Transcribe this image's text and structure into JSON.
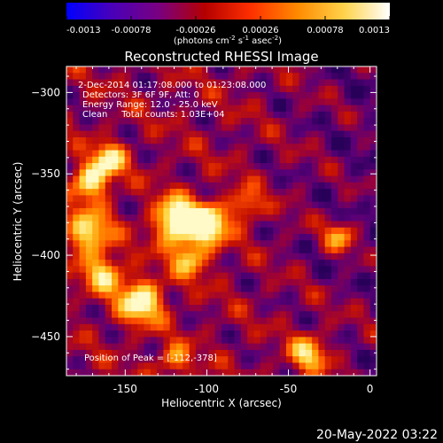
{
  "colorbar": {
    "tick_labels": [
      "-0.0013",
      "-0.00078",
      "-0.00026",
      "0.00026",
      "0.00078",
      "0.0013"
    ],
    "tick_values": [
      -0.0013,
      -0.00078,
      -0.00026,
      0.00026,
      0.00078,
      0.0013
    ],
    "range": [
      -0.0013,
      0.0013
    ],
    "units_text": "(photons cm",
    "units_sup1": "-2",
    "units_mid": " s",
    "units_sup2": "-1",
    "units_mid2": " asec",
    "units_sup3": "-2",
    "units_end": ")",
    "colors": [
      "#0000ff",
      "#4a00b8",
      "#7a0080",
      "#b50000",
      "#ff3000",
      "#ff8a00",
      "#ffd24a",
      "#ffffff"
    ]
  },
  "image": {
    "title": "Reconstructed RHESSI Image",
    "info_lines": [
      "2-Dec-2014 01:17:08.000 to 01:23:08.000",
      "Detectors: 3F 6F 9F, Att: 0",
      "Energy Range: 12.0 - 25.0 keV",
      "Clean     Total counts: 1.03E+04"
    ],
    "peak_text": "Position of Peak = [-112,-378]",
    "peak": [
      -112,
      -378
    ],
    "xlabel": "Heliocentric X (arcsec)",
    "ylabel": "Heliocentric Y (arcsec)",
    "xlim": [
      -186,
      4
    ],
    "ylim": [
      -474,
      -284
    ],
    "xticks": [
      -150,
      -100,
      -50,
      0
    ],
    "xtick_labels": [
      "-150",
      "-100",
      "-50",
      "0"
    ],
    "yticks": [
      -300,
      -350,
      -400,
      -450
    ],
    "ytick_labels": [
      "−300",
      "−350",
      "−400",
      "−450"
    ],
    "minor_x_step": 10,
    "minor_y_step": 10
  },
  "footer": {
    "timestamp": "20-May-2022 03:22"
  }
}
